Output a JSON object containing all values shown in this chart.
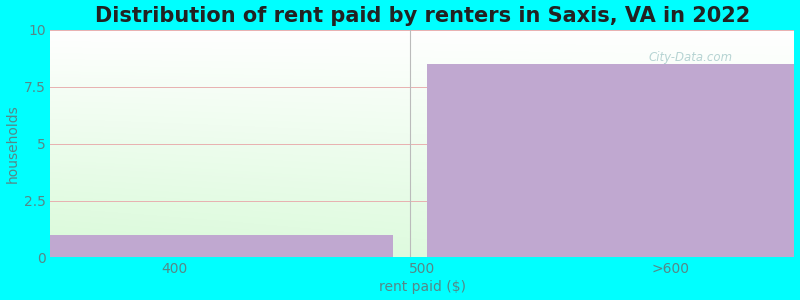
{
  "title": "Distribution of rent paid by renters in Saxis, VA in 2022",
  "xlabel": "rent paid ($)",
  "ylabel": "households",
  "bar_values": [
    1,
    8.5
  ],
  "bar_color": "#c0a8d0",
  "xtick_labels": [
    "400",
    "500",
    ">600"
  ],
  "ylim": [
    0,
    10
  ],
  "yticks": [
    0,
    2.5,
    5,
    7.5,
    10
  ],
  "background_color": "#00FFFF",
  "grid_color": "#e8b0b0",
  "title_fontsize": 15,
  "axis_label_fontsize": 10,
  "tick_fontsize": 10,
  "watermark_text": "City-Data.com"
}
